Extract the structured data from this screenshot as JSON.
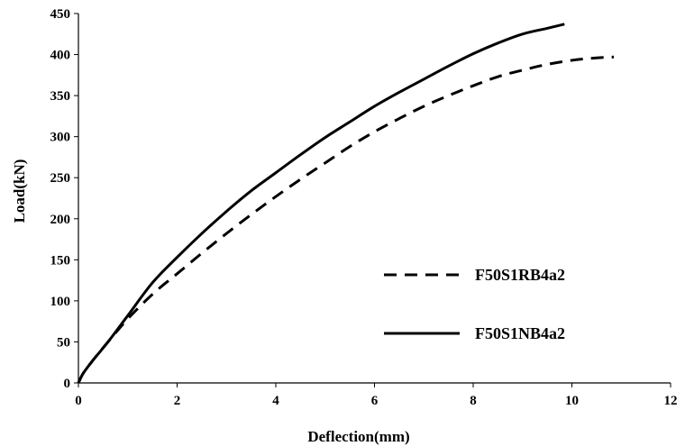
{
  "chart_data": {
    "type": "line",
    "title": "",
    "xlabel": "Deflection(mm)",
    "ylabel": "Load(kN)",
    "xlim": [
      0,
      12
    ],
    "ylim": [
      0,
      450
    ],
    "xticks": [
      "0",
      "2",
      "4",
      "6",
      "8",
      "10",
      "12"
    ],
    "yticks": [
      "0",
      "50",
      "100",
      "150",
      "200",
      "250",
      "300",
      "350",
      "400",
      "450"
    ],
    "grid": false,
    "legend_position": "right",
    "series": [
      {
        "name": "F50S1RB4a2",
        "style": "dashed",
        "color": "#000000",
        "x": [
          0,
          0.1,
          0.3,
          0.6,
          1.0,
          1.5,
          2.0,
          2.5,
          3.0,
          3.5,
          4.0,
          4.5,
          5.0,
          5.5,
          6.0,
          6.5,
          7.0,
          7.5,
          8.0,
          8.5,
          9.0,
          9.5,
          10.0,
          10.5,
          10.85
        ],
        "y": [
          0,
          12,
          28,
          50,
          78,
          108,
          133,
          158,
          182,
          205,
          227,
          248,
          268,
          288,
          306,
          322,
          337,
          350,
          362,
          373,
          381,
          388,
          393,
          396,
          397
        ]
      },
      {
        "name": "F50S1NB4a2",
        "style": "solid",
        "color": "#000000",
        "x": [
          0,
          0.1,
          0.3,
          0.6,
          1.0,
          1.5,
          2.0,
          2.5,
          3.0,
          3.5,
          4.0,
          4.5,
          5.0,
          5.5,
          6.0,
          6.5,
          7.0,
          7.5,
          8.0,
          8.5,
          9.0,
          9.5,
          9.85
        ],
        "y": [
          0,
          12,
          28,
          50,
          82,
          122,
          153,
          182,
          209,
          234,
          256,
          278,
          299,
          318,
          337,
          354,
          370,
          386,
          401,
          414,
          425,
          432,
          437
        ]
      }
    ]
  }
}
